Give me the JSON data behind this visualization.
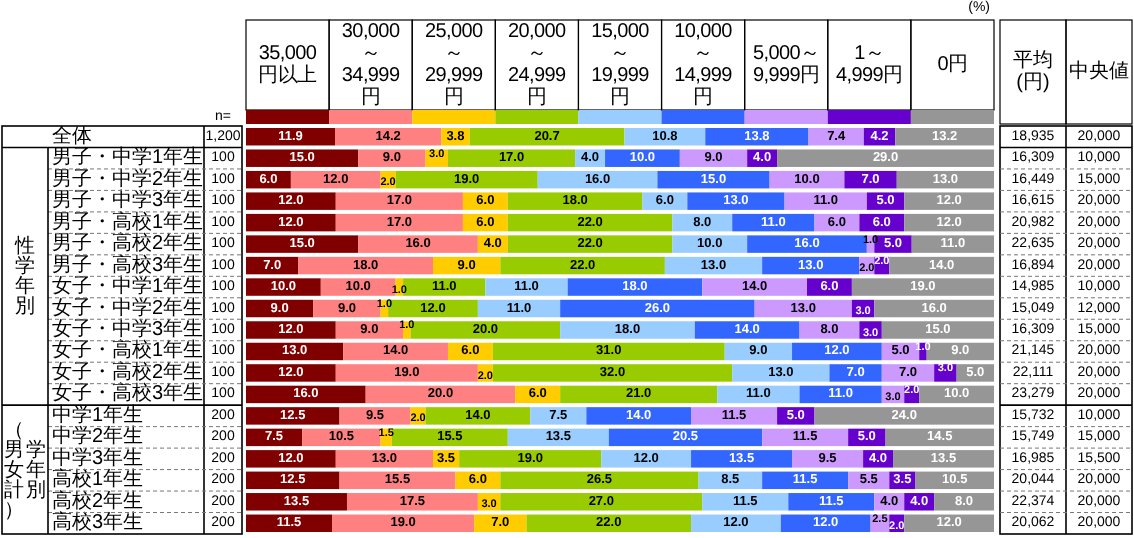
{
  "chart_data": [
    {
      "type": "bar",
      "orientation": "horizontal",
      "stacked": true,
      "legend": "top",
      "xlabel": "(%)",
      "xlim": [
        0,
        100
      ],
      "categories": [
        "全体",
        "男子・中学1年生",
        "男子・中学2年生",
        "男子・中学3年生",
        "男子・高校1年生",
        "男子・高校2年生",
        "男子・高校3年生",
        "女子・中学1年生",
        "女子・中学2年生",
        "女子・中学3年生",
        "女子・高校1年生",
        "女子・高校2年生",
        "女子・高校3年生",
        "中学1年生",
        "中学2年生",
        "中学3年生",
        "高校1年生",
        "高校2年生",
        "高校3年生"
      ],
      "series": [
        {
          "name": "35,000円以上",
          "color": "#800000",
          "values": [
            11.9,
            15,
            6,
            12,
            12,
            15,
            7,
            10,
            9,
            12,
            13,
            12,
            16,
            12.5,
            7.5,
            12,
            12.5,
            13.5,
            11.5
          ],
          "value_labels": [
            "11.9",
            "15.0",
            "6.0",
            "12.0",
            "12.0",
            "15.0",
            "7.0",
            "10.0",
            "9.0",
            "12.0",
            "13.0",
            "12.0",
            "16.0",
            "12.5",
            "7.5",
            "12.0",
            "12.5",
            "13.5",
            "11.5"
          ]
        },
        {
          "name": "30,000～34,999円",
          "color": "#ff8080",
          "values": [
            14.2,
            9,
            12,
            17,
            17,
            16,
            18,
            10,
            9,
            9,
            14,
            19,
            20,
            9.5,
            10.5,
            13,
            15.5,
            17.5,
            19
          ],
          "value_labels": [
            "14.2",
            "9.0",
            "12.0",
            "17.0",
            "17.0",
            "16.0",
            "18.0",
            "10.0",
            "9.0",
            "9.0",
            "14.0",
            "19.0",
            "20.0",
            "9.5",
            "10.5",
            "13.0",
            "15.5",
            "17.5",
            "19.0"
          ]
        },
        {
          "name": "25,000～29,999円",
          "color": "#ffcc00",
          "values": [
            3.8,
            3,
            2,
            6,
            6,
            4,
            9,
            1,
            1,
            1,
            6,
            2,
            6,
            2,
            1.5,
            3.5,
            6,
            3,
            7
          ],
          "value_labels": [
            "3.8",
            "3.0",
            "2.0",
            "6.0",
            "6.0",
            "4.0",
            "9.0",
            "1.0",
            "1.0",
            "1.0",
            "6.0",
            "2.0",
            "6.0",
            "2.0",
            "1.5",
            "3.5",
            "6.0",
            "3.0",
            "7.0"
          ]
        },
        {
          "name": "20,000～24,999円",
          "color": "#99cc00",
          "values": [
            20.7,
            17,
            19,
            18,
            22,
            22,
            22,
            11,
            12,
            20,
            31,
            32,
            21,
            14,
            15.5,
            19,
            26.5,
            27,
            22
          ],
          "value_labels": [
            "20.7",
            "17.0",
            "19.0",
            "18.0",
            "22.0",
            "22.0",
            "22.0",
            "11.0",
            "12.0",
            "20.0",
            "31.0",
            "32.0",
            "21.0",
            "14.0",
            "15.5",
            "19.0",
            "26.5",
            "27.0",
            "22.0"
          ]
        },
        {
          "name": "15,000～19,999円",
          "color": "#99ccff",
          "values": [
            10.8,
            4,
            16,
            6,
            8,
            10,
            13,
            11,
            11,
            18,
            9,
            13,
            11,
            7.5,
            13.5,
            12,
            8.5,
            11.5,
            12
          ],
          "value_labels": [
            "10.8",
            "4.0",
            "16.0",
            "6.0",
            "8.0",
            "10.0",
            "13.0",
            "11.0",
            "11.0",
            "18.0",
            "9.0",
            "13.0",
            "11.0",
            "7.5",
            "13.5",
            "12.0",
            "8.5",
            "11.5",
            "12.0"
          ]
        },
        {
          "name": "10,000～14,999円",
          "color": "#3366ff",
          "values": [
            13.8,
            10,
            15,
            13,
            11,
            16,
            13,
            18,
            26,
            14,
            12,
            7,
            11,
            14,
            20.5,
            13.5,
            11.5,
            11.5,
            12
          ],
          "value_labels": [
            "13.8",
            "10.0",
            "15.0",
            "13.0",
            "11.0",
            "16.0",
            "13.0",
            "18.0",
            "26.0",
            "14.0",
            "12.0",
            "7.0",
            "11.0",
            "14.0",
            "20.5",
            "13.5",
            "11.5",
            "11.5",
            "12.0"
          ]
        },
        {
          "name": "5,000～9,999円",
          "color": "#cc99ff",
          "values": [
            7.4,
            9,
            10,
            11,
            6,
            1,
            2,
            14,
            13,
            8,
            5,
            7,
            3,
            11.5,
            11.5,
            9.5,
            5.5,
            4,
            2.5
          ],
          "value_labels": [
            "7.4",
            "9.0",
            "10.0",
            "11.0",
            "6.0",
            "1.0",
            "2.0",
            "14.0",
            "13.0",
            "8.0",
            "5.0",
            "7.0",
            "3.0",
            "11.5",
            "11.5",
            "9.5",
            "5.5",
            "4.0",
            "2.5"
          ]
        },
        {
          "name": "1～4,999円",
          "color": "#6600cc",
          "values": [
            4.2,
            4,
            7,
            5,
            6,
            5,
            2,
            6,
            3,
            3,
            1,
            3,
            2,
            5,
            5,
            4,
            3.5,
            4,
            2
          ],
          "value_labels": [
            "4.2",
            "4.0",
            "7.0",
            "5.0",
            "6.0",
            "5.0",
            "2.0",
            "6.0",
            "3.0",
            "3.0",
            "1.0",
            "3.0",
            "2.0",
            "5.0",
            "5.0",
            "4.0",
            "3.5",
            "4.0",
            "2.0"
          ]
        },
        {
          "name": "0円",
          "color": "#969696",
          "values": [
            13.2,
            29,
            13,
            12,
            12,
            11,
            14,
            19,
            16,
            15,
            9,
            5,
            10,
            24,
            14.5,
            13.5,
            10.5,
            8,
            12
          ],
          "value_labels": [
            "13.2",
            "29.0",
            "13.0",
            "12.0",
            "12.0",
            "11.0",
            "14.0",
            "19.0",
            "16.0",
            "15.0",
            "9.0",
            "5.0",
            "10.0",
            "24.0",
            "14.5",
            "13.5",
            "10.5",
            "8.0",
            "12.0"
          ]
        }
      ],
      "annotations": [
        "n=",
        "1,200",
        "100",
        "100",
        "100",
        "100",
        "100",
        "100",
        "100",
        "100",
        "100",
        "100",
        "100",
        "100",
        "200",
        "200",
        "200",
        "200",
        "200",
        "200",
        "性学年別",
        "学年別（男女計）"
      ]
    },
    {
      "type": "other",
      "annotations": [
        "平均(円)",
        "中央値",
        "18,935",
        "20,000",
        "16,309",
        "10,000",
        "16,449",
        "15,000",
        "16,615",
        "20,000",
        "20,982",
        "20,000",
        "22,635",
        "20,000",
        "16,894",
        "20,000",
        "14,985",
        "10,000",
        "15,049",
        "12,000",
        "16,309",
        "15,000",
        "21,145",
        "20,000",
        "22,111",
        "20,000",
        "23,279",
        "20,000",
        "15,732",
        "10,000",
        "15,749",
        "15,000",
        "16,985",
        "15,500",
        "20,044",
        "20,000",
        "22,374",
        "20,000",
        "20,062",
        "20,000"
      ]
    }
  ]
}
